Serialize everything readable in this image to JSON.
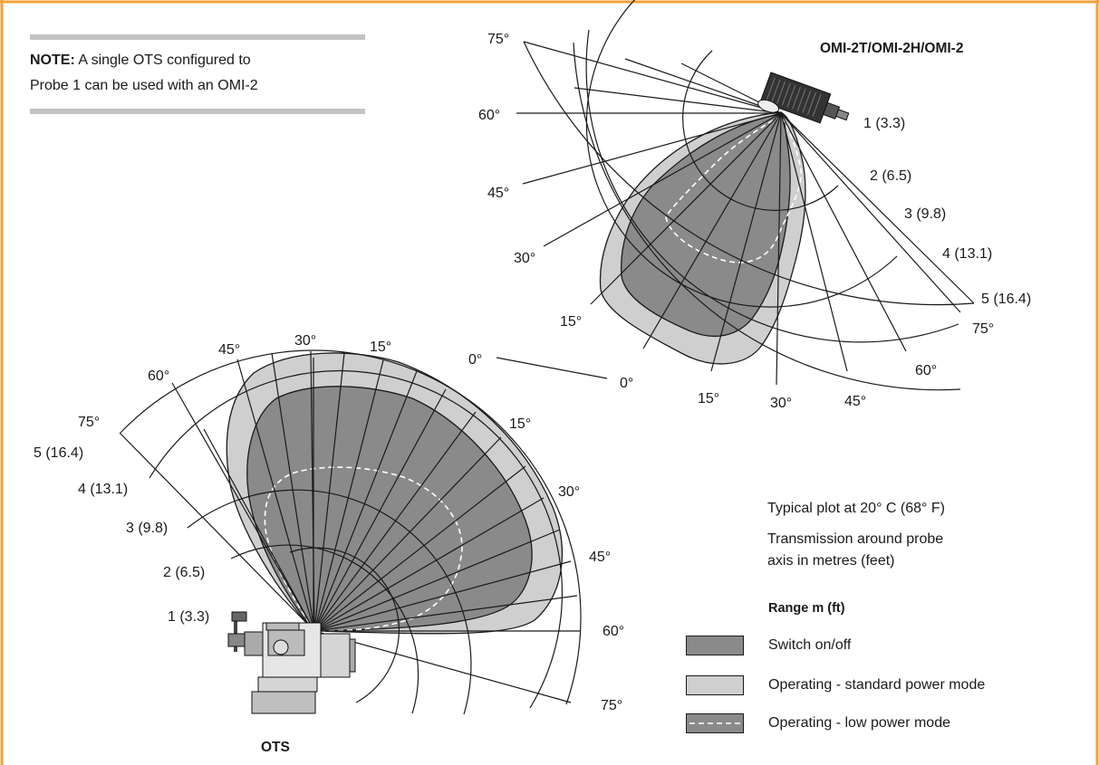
{
  "colors": {
    "frame": "#f0a23c",
    "switch_fill": "#8a8a8a",
    "standard_fill": "#cfcfcf",
    "grid": "#1a1a1a",
    "note_bar": "#c3c3c3"
  },
  "note": {
    "bold": "NOTE:",
    "line1": " A single OTS configured to",
    "line2": "Probe 1 can be used with an OMI-2"
  },
  "omi": {
    "title": "OMI-2T/OMI-2H/OMI-2",
    "ranges": [
      "1 (3.3)",
      "2 (6.5)",
      "3 (9.8)",
      "4 (13.1)",
      "5 (16.4)"
    ],
    "left_angles": [
      "75°",
      "60°",
      "45°",
      "30°",
      "15°",
      "0°"
    ],
    "bottom_angles": [
      "0°",
      "15°",
      "30°",
      "45°",
      "60°",
      "75°"
    ]
  },
  "ots": {
    "label": "OTS",
    "ranges": [
      "5 (16.4)",
      "4 (13.1)",
      "3 (9.8)",
      "2 (6.5)",
      "1 (3.3)"
    ],
    "top_angles": [
      "75°",
      "60°",
      "45°",
      "30°",
      "15°",
      "0°"
    ],
    "right_angles": [
      "15°",
      "30°",
      "45°",
      "60°",
      "75°"
    ]
  },
  "info": {
    "line1": "Typical plot at 20° C (68° F)",
    "line2": "Transmission around probe",
    "line3": "axis in metres (feet)"
  },
  "legend": {
    "title": "Range m (ft)",
    "switch": "Switch on/off",
    "standard": "Operating - standard power mode",
    "low": "Operating - low power mode"
  }
}
